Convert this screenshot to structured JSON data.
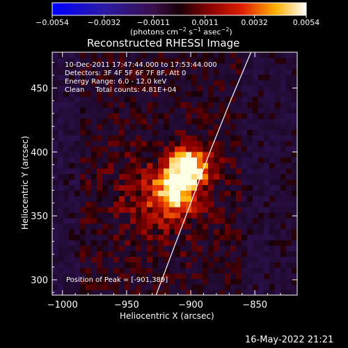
{
  "chart_data": {
    "type": "heatmap",
    "title": "Reconstructed RHESSI Image",
    "xlabel": "Heliocentric X (arcsec)",
    "ylabel": "Heliocentric Y (arcsec)",
    "xlim": [
      -1008,
      -817
    ],
    "ylim": [
      288,
      478
    ],
    "x_ticks": [
      -1000,
      -950,
      -900,
      -850
    ],
    "y_ticks": [
      300,
      350,
      400,
      450
    ],
    "x_tick_labels": [
      "−1000",
      "−950",
      "−900",
      "−850"
    ],
    "y_tick_labels": [
      "300",
      "350",
      "400",
      "450"
    ],
    "colorbar": {
      "range": [
        -0.0054,
        0.0054
      ],
      "ticks": [
        -0.0054,
        -0.0032,
        -0.0011,
        0.0011,
        0.0032,
        0.0054
      ],
      "tick_labels": [
        "−0.0054",
        "−0.0032",
        "−0.0011",
        "0.0011",
        "0.0032",
        "0.0054"
      ],
      "unit_pre": "(photons cm",
      "unit_exp1": "−2",
      "unit_mid": " s",
      "unit_exp2": "−1",
      "unit_mid2": " asec",
      "unit_exp3": "−2",
      "unit_post": ")"
    },
    "annotations": [
      "10-Dec-2011 17:47:44.000 to 17:53:44.000",
      "Detectors: 3F 4F 5F 6F 7F 8F, Att 0",
      "Energy Range: 6.0 - 12.0 keV",
      "Clean     Total counts: 4.81E+04"
    ],
    "peak_label": "Position of Peak = [-901,389]",
    "peak_position": [
      -901,
      389
    ],
    "limb_line": [
      [
        -927,
        288
      ],
      [
        -915,
        320
      ],
      [
        -900,
        360
      ],
      [
        -885,
        400
      ],
      [
        -869,
        440
      ],
      [
        -853,
        478
      ]
    ],
    "date_stamp": "16-May-2022 21:21"
  }
}
